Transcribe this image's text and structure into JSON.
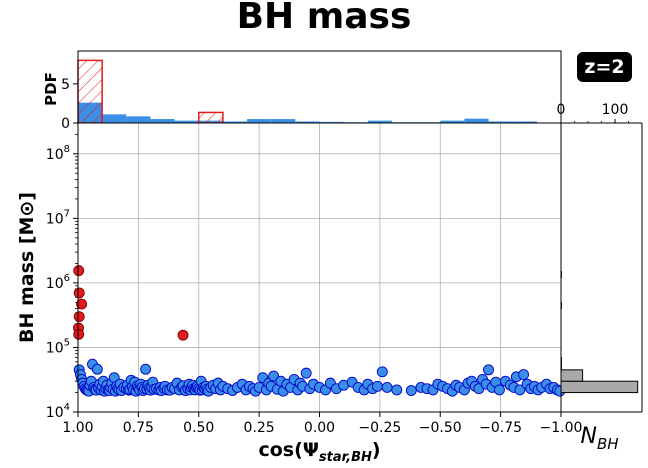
{
  "chart_data": {
    "type": "scatter",
    "title": "BH mass",
    "badge": "z=2",
    "xlabel": "cos(Ψ_star,BH)",
    "ylabel": "BH mass [M⊙]",
    "xlim": [
      1.0,
      -1.0
    ],
    "ylim": [
      10000,
      300000000
    ],
    "yscale": "log",
    "grid": true,
    "x_ticks": [
      "1.00",
      "0.75",
      "0.50",
      "0.25",
      "0.00",
      "−0.25",
      "−0.50",
      "−0.75",
      "−1.00"
    ],
    "y_ticks": [
      {
        "base": "10",
        "exp": "4",
        "value": 10000
      },
      {
        "base": "10",
        "exp": "5",
        "value": 100000
      },
      {
        "base": "10",
        "exp": "6",
        "value": 1000000
      },
      {
        "base": "10",
        "exp": "7",
        "value": 10000000
      },
      {
        "base": "10",
        "exp": "8",
        "value": 100000000
      }
    ],
    "top_hist": {
      "ylabel": "PDF",
      "ylim": [
        0,
        9.2
      ],
      "y_ticks": [
        "0",
        "5"
      ],
      "bins": [
        1.0,
        0.9,
        0.8,
        0.7,
        0.6,
        0.5,
        0.4,
        0.3,
        0.2,
        0.1,
        0.0,
        -0.1,
        -0.2,
        -0.3,
        -0.4,
        -0.5,
        -0.6,
        -0.7,
        -0.8,
        -0.9,
        -1.0
      ],
      "series": [
        {
          "name": "blue",
          "color": "#3a8ee6",
          "values": [
            2.6,
            1.1,
            0.85,
            0.5,
            0.3,
            0.3,
            0.2,
            0.5,
            0.5,
            0.2,
            0.15,
            0.1,
            0.3,
            0.1,
            0.1,
            0.3,
            0.55,
            0.2,
            0.2,
            0.05
          ]
        },
        {
          "name": "red",
          "color": "#e41a1c",
          "values": [
            8.0,
            0,
            0,
            0,
            0,
            1.35,
            0,
            0,
            0,
            0,
            0,
            0,
            0,
            0,
            0,
            0,
            0,
            0,
            0,
            0
          ]
        }
      ]
    },
    "side_hist": {
      "xlabel": "N_BH",
      "xlim": [
        0,
        150
      ],
      "x_ticks": [
        "0",
        "100"
      ],
      "bars": [
        {
          "low": 20000,
          "high": 30000,
          "count": 142
        },
        {
          "low": 30000,
          "high": 45000,
          "count": 40
        },
        {
          "low": 45000,
          "high": 70000,
          "count": 0.8
        },
        {
          "low": 400000,
          "high": 500000,
          "count": 0.8
        },
        {
          "low": 1200000,
          "high": 1500000,
          "count": 0.8
        }
      ]
    },
    "series": [
      {
        "name": "red",
        "color": "#e41a1c",
        "edge": "#7a0000",
        "points": [
          [
            0.997,
            1550000
          ],
          [
            0.995,
            700000
          ],
          [
            0.985,
            470000
          ],
          [
            0.995,
            300000
          ],
          [
            0.998,
            200000
          ],
          [
            0.997,
            160000
          ],
          [
            0.565,
            155000
          ]
        ]
      },
      {
        "name": "blue",
        "color": "#3a8ee6",
        "edge": "#0000cc",
        "points": [
          [
            0.995,
            45000
          ],
          [
            0.99,
            38000
          ],
          [
            0.985,
            32000
          ],
          [
            0.98,
            28000
          ],
          [
            0.975,
            25000
          ],
          [
            0.97,
            23000
          ],
          [
            0.965,
            22000
          ],
          [
            0.96,
            21500
          ],
          [
            0.955,
            21000
          ],
          [
            0.95,
            26000
          ],
          [
            0.945,
            30000
          ],
          [
            0.94,
            55000
          ],
          [
            0.935,
            24000
          ],
          [
            0.93,
            22500
          ],
          [
            0.925,
            21800
          ],
          [
            0.92,
            46000
          ],
          [
            0.915,
            23500
          ],
          [
            0.91,
            27000
          ],
          [
            0.905,
            22000
          ],
          [
            0.9,
            24500
          ],
          [
            0.895,
            30000
          ],
          [
            0.89,
            21000
          ],
          [
            0.885,
            23000
          ],
          [
            0.88,
            26000
          ],
          [
            0.875,
            22000
          ],
          [
            0.87,
            21500
          ],
          [
            0.865,
            24000
          ],
          [
            0.86,
            28000
          ],
          [
            0.855,
            22500
          ],
          [
            0.85,
            34000
          ],
          [
            0.845,
            21000
          ],
          [
            0.84,
            25000
          ],
          [
            0.835,
            23000
          ],
          [
            0.83,
            22000
          ],
          [
            0.825,
            27000
          ],
          [
            0.82,
            21500
          ],
          [
            0.81,
            24000
          ],
          [
            0.8,
            23000
          ],
          [
            0.795,
            26000
          ],
          [
            0.79,
            21800
          ],
          [
            0.785,
            22500
          ],
          [
            0.78,
            31000
          ],
          [
            0.775,
            24500
          ],
          [
            0.77,
            22000
          ],
          [
            0.765,
            29000
          ],
          [
            0.76,
            21000
          ],
          [
            0.755,
            25000
          ],
          [
            0.75,
            23500
          ],
          [
            0.745,
            22000
          ],
          [
            0.74,
            27000
          ],
          [
            0.735,
            24000
          ],
          [
            0.73,
            21500
          ],
          [
            0.725,
            23000
          ],
          [
            0.72,
            46000
          ],
          [
            0.715,
            22800
          ],
          [
            0.71,
            26000
          ],
          [
            0.705,
            23500
          ],
          [
            0.7,
            21800
          ],
          [
            0.695,
            24000
          ],
          [
            0.69,
            29000
          ],
          [
            0.685,
            22500
          ],
          [
            0.675,
            23000
          ],
          [
            0.665,
            22000
          ],
          [
            0.66,
            24000
          ],
          [
            0.655,
            21500
          ],
          [
            0.645,
            23500
          ],
          [
            0.64,
            25000
          ],
          [
            0.63,
            22000
          ],
          [
            0.62,
            21800
          ],
          [
            0.61,
            24000
          ],
          [
            0.6,
            23000
          ],
          [
            0.59,
            28000
          ],
          [
            0.58,
            22000
          ],
          [
            0.57,
            24500
          ],
          [
            0.565,
            25500
          ],
          [
            0.555,
            21500
          ],
          [
            0.545,
            23000
          ],
          [
            0.54,
            27000
          ],
          [
            0.535,
            22000
          ],
          [
            0.53,
            24000
          ],
          [
            0.525,
            26000
          ],
          [
            0.52,
            23000
          ],
          [
            0.515,
            22000
          ],
          [
            0.51,
            24000
          ],
          [
            0.505,
            25000
          ],
          [
            0.5,
            23000
          ],
          [
            0.495,
            21800
          ],
          [
            0.49,
            30000
          ],
          [
            0.485,
            22000
          ],
          [
            0.48,
            24000
          ],
          [
            0.475,
            23000
          ],
          [
            0.47,
            25000
          ],
          [
            0.465,
            22500
          ],
          [
            0.46,
            21000
          ],
          [
            0.45,
            24000
          ],
          [
            0.44,
            26000
          ],
          [
            0.43,
            23000
          ],
          [
            0.42,
            28000
          ],
          [
            0.41,
            22000
          ],
          [
            0.4,
            25000
          ],
          [
            0.38,
            23000
          ],
          [
            0.36,
            21500
          ],
          [
            0.34,
            24000
          ],
          [
            0.32,
            27000
          ],
          [
            0.305,
            22000
          ],
          [
            0.29,
            25000
          ],
          [
            0.275,
            23000
          ],
          [
            0.265,
            21000
          ],
          [
            0.25,
            24000
          ],
          [
            0.235,
            34000
          ],
          [
            0.22,
            22000
          ],
          [
            0.21,
            28000
          ],
          [
            0.2,
            25000
          ],
          [
            0.19,
            36000
          ],
          [
            0.175,
            22500
          ],
          [
            0.16,
            30000
          ],
          [
            0.15,
            21000
          ],
          [
            0.135,
            27000
          ],
          [
            0.12,
            24000
          ],
          [
            0.105,
            32000
          ],
          [
            0.09,
            22000
          ],
          [
            0.08,
            28000
          ],
          [
            0.07,
            25000
          ],
          [
            0.055,
            40000
          ],
          [
            0.04,
            23000
          ],
          [
            0.025,
            27000
          ],
          [
            0.0,
            24000
          ],
          [
            -0.025,
            22000
          ],
          [
            -0.045,
            28000
          ],
          [
            -0.07,
            23000
          ],
          [
            -0.1,
            26000
          ],
          [
            -0.135,
            29000
          ],
          [
            -0.16,
            24000
          ],
          [
            -0.185,
            22000
          ],
          [
            -0.2,
            27000
          ],
          [
            -0.22,
            23000
          ],
          [
            -0.24,
            25000
          ],
          [
            -0.26,
            42000
          ],
          [
            -0.28,
            24000
          ],
          [
            -0.32,
            22000
          ],
          [
            -0.38,
            21500
          ],
          [
            -0.42,
            24000
          ],
          [
            -0.445,
            23000
          ],
          [
            -0.47,
            22000
          ],
          [
            -0.49,
            27000
          ],
          [
            -0.51,
            25000
          ],
          [
            -0.53,
            23000
          ],
          [
            -0.55,
            21000
          ],
          [
            -0.565,
            26000
          ],
          [
            -0.58,
            24000
          ],
          [
            -0.6,
            22000
          ],
          [
            -0.615,
            28000
          ],
          [
            -0.63,
            30000
          ],
          [
            -0.645,
            25000
          ],
          [
            -0.66,
            23000
          ],
          [
            -0.675,
            32000
          ],
          [
            -0.69,
            27000
          ],
          [
            -0.7,
            45000
          ],
          [
            -0.715,
            24000
          ],
          [
            -0.73,
            29000
          ],
          [
            -0.745,
            22000
          ],
          [
            -0.77,
            30000
          ],
          [
            -0.79,
            26000
          ],
          [
            -0.805,
            24000
          ],
          [
            -0.815,
            35000
          ],
          [
            -0.83,
            22000
          ],
          [
            -0.845,
            38000
          ],
          [
            -0.86,
            27000
          ],
          [
            -0.875,
            23000
          ],
          [
            -0.89,
            25000
          ],
          [
            -0.905,
            22000
          ],
          [
            -0.92,
            24000
          ],
          [
            -0.94,
            27000
          ],
          [
            -0.955,
            23000
          ],
          [
            -0.97,
            24000
          ],
          [
            -0.985,
            22000
          ],
          [
            -0.995,
            21000
          ]
        ]
      }
    ]
  }
}
